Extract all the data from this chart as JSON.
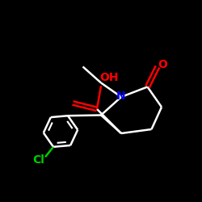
{
  "background_color": "#000000",
  "bond_color": "#ffffff",
  "O_color": "#ff0000",
  "N_color": "#0000ff",
  "Cl_color": "#00cc00",
  "line_width": 1.8,
  "font_size": 10,
  "fig_width": 2.5,
  "fig_height": 2.5,
  "dpi": 100,
  "atoms": {
    "OH_label": "OH",
    "O_label": "O",
    "N_label": "N",
    "Cl_label": "Cl"
  }
}
